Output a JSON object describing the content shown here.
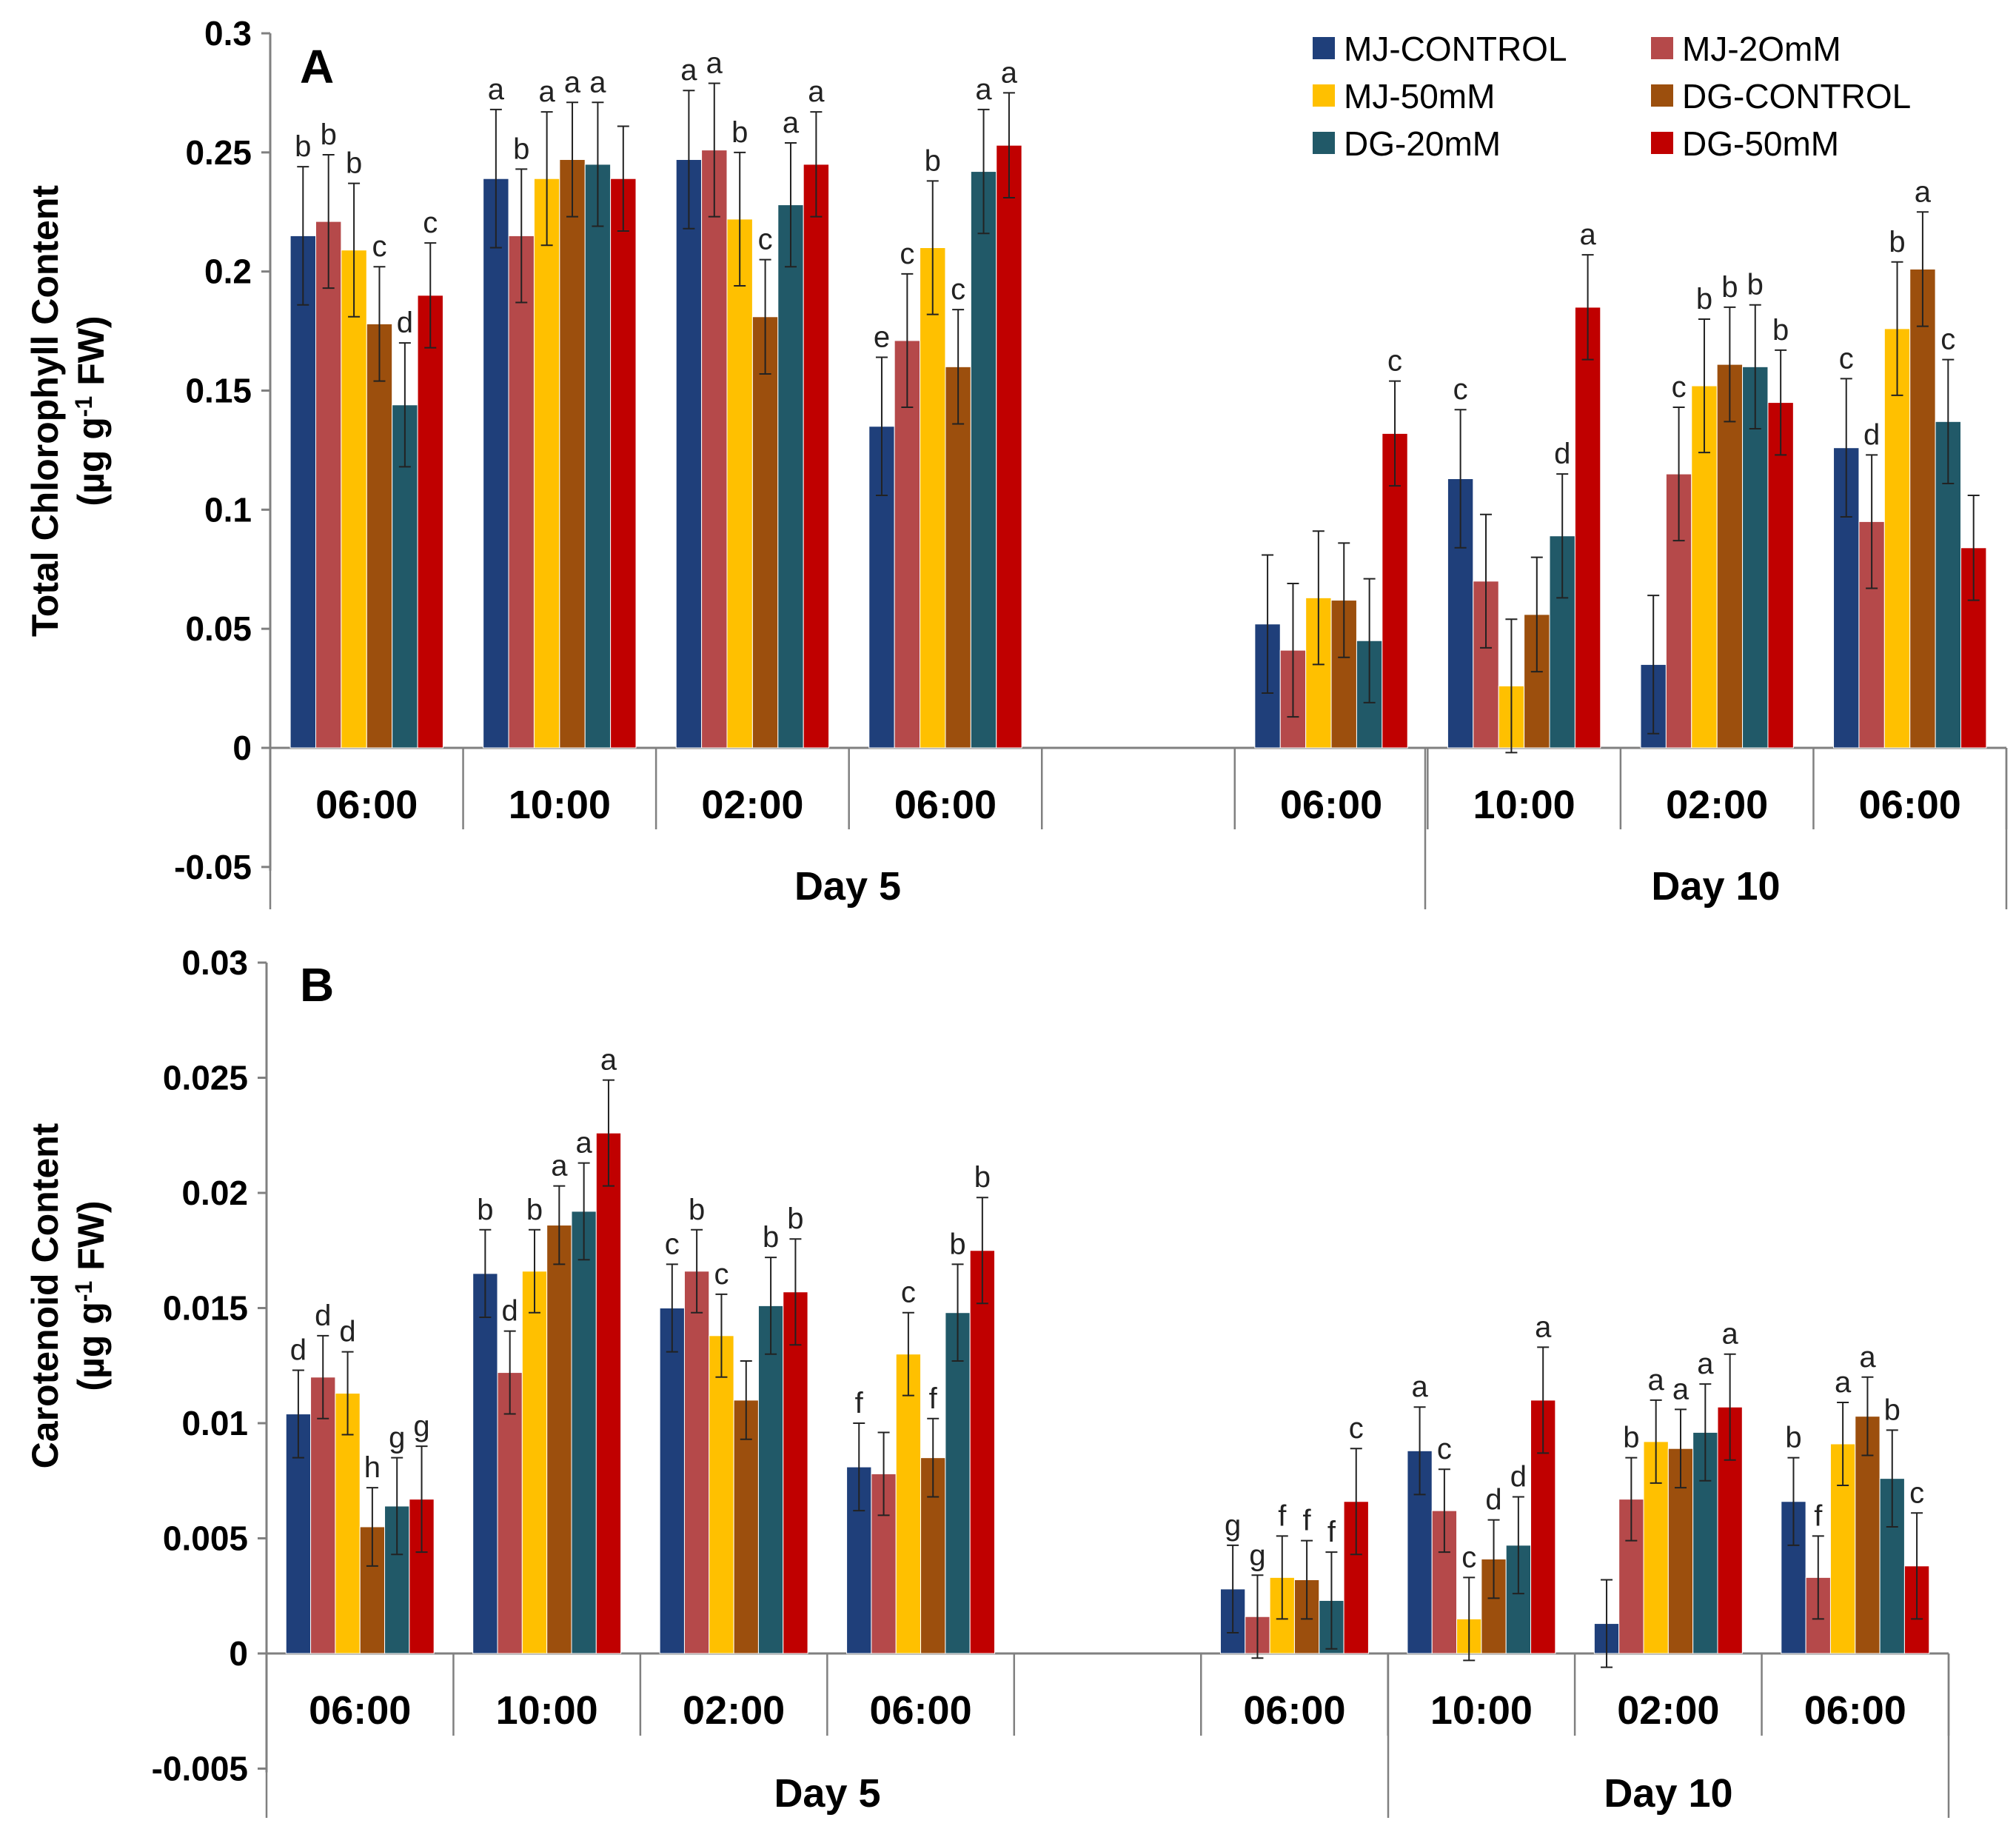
{
  "legend": [
    {
      "name": "MJ-CONTROL",
      "color": "#1f3f7a"
    },
    {
      "name": "MJ-2OmM",
      "color": "#b5494a"
    },
    {
      "name": "MJ-50mM",
      "color": "#ffc000"
    },
    {
      "name": "DG-CONTROL",
      "color": "#9c4f0d"
    },
    {
      "name": "DG-20mM",
      "color": "#215968"
    },
    {
      "name": "DG-50mM",
      "color": "#c00000"
    }
  ],
  "chart_data": [
    {
      "type": "bar",
      "panel": "A",
      "ylabel_line1": "Total Chlorophyll Content",
      "ylabel_line2": "(µg g",
      "ylabel_sup": "-1",
      "ylabel_line2_end": " FW)",
      "ylim": [
        -0.05,
        0.3
      ],
      "yticks": [
        "-0.05",
        "0",
        "0.05",
        "0.1",
        "0.15",
        "0.2",
        "0.25",
        "0.3"
      ],
      "ytick_values": [
        -0.05,
        0,
        0.05,
        0.1,
        0.15,
        0.2,
        0.25,
        0.3
      ],
      "categories": [
        "06:00",
        "10:00",
        "02:00",
        "06:00",
        "",
        "06:00",
        "10:00",
        "02:00",
        "06:00"
      ],
      "groups": [
        {
          "label": "Day 5"
        },
        {
          "label": "Day 10"
        }
      ],
      "series": [
        {
          "name": "MJ-CONTROL",
          "values": [
            0.215,
            0.239,
            0.247,
            0.135,
            null,
            0.052,
            0.113,
            0.035,
            0.126
          ],
          "errors": [
            0.029,
            0.029,
            0.029,
            0.029,
            null,
            0.029,
            0.029,
            0.029,
            0.029
          ],
          "labels": [
            "b",
            "a",
            "a",
            "e",
            "",
            "",
            "c",
            "",
            "c"
          ]
        },
        {
          "name": "MJ-2OmM",
          "values": [
            0.221,
            0.215,
            0.251,
            0.171,
            null,
            0.041,
            0.07,
            0.115,
            0.095
          ],
          "errors": [
            0.028,
            0.028,
            0.028,
            0.028,
            null,
            0.028,
            0.028,
            0.028,
            0.028
          ],
          "labels": [
            "b",
            "b",
            "a",
            "c",
            "",
            "",
            "",
            "c",
            "d"
          ]
        },
        {
          "name": "MJ-50mM",
          "values": [
            0.209,
            0.239,
            0.222,
            0.21,
            null,
            0.063,
            0.026,
            0.152,
            0.176
          ],
          "errors": [
            0.028,
            0.028,
            0.028,
            0.028,
            null,
            0.028,
            0.028,
            0.028,
            0.028
          ],
          "labels": [
            "b",
            "a",
            "b",
            "b",
            "",
            "",
            "",
            "b",
            "b"
          ]
        },
        {
          "name": "DG-CONTROL",
          "values": [
            0.178,
            0.247,
            0.181,
            0.16,
            null,
            0.062,
            0.056,
            0.161,
            0.201
          ],
          "errors": [
            0.024,
            0.024,
            0.024,
            0.024,
            null,
            0.024,
            0.024,
            0.024,
            0.024
          ],
          "labels": [
            "c",
            "a",
            "c",
            "c",
            "",
            "",
            "",
            "b",
            "a"
          ]
        },
        {
          "name": "DG-20mM",
          "values": [
            0.144,
            0.245,
            0.228,
            0.242,
            null,
            0.045,
            0.089,
            0.16,
            0.137
          ],
          "errors": [
            0.026,
            0.026,
            0.026,
            0.026,
            null,
            0.026,
            0.026,
            0.026,
            0.026
          ],
          "labels": [
            "d",
            "a",
            "a",
            "a",
            "",
            "",
            "d",
            "b",
            "c"
          ]
        },
        {
          "name": "DG-50mM",
          "values": [
            0.19,
            0.239,
            0.245,
            0.253,
            null,
            0.132,
            0.185,
            0.145,
            0.084
          ],
          "errors": [
            0.022,
            0.022,
            0.022,
            0.022,
            null,
            0.022,
            0.022,
            0.022,
            0.022
          ],
          "labels": [
            "c",
            "",
            "a",
            "a",
            "",
            "c",
            "a",
            "b",
            ""
          ]
        }
      ]
    },
    {
      "type": "bar",
      "panel": "B",
      "ylabel_line1": "Carotenoid Content",
      "ylabel_line2": "(µg g",
      "ylabel_sup": "-1",
      "ylabel_line2_end": " FW)",
      "ylim": [
        -0.005,
        0.03
      ],
      "yticks": [
        "-0.005",
        "0",
        "0.005",
        "0.01",
        "0.015",
        "0.02",
        "0.025",
        "0.03"
      ],
      "ytick_values": [
        -0.005,
        0,
        0.005,
        0.01,
        0.015,
        0.02,
        0.025,
        0.03
      ],
      "categories": [
        "06:00",
        "10:00",
        "02:00",
        "06:00",
        "",
        "06:00",
        "10:00",
        "02:00",
        "06:00"
      ],
      "groups": [
        {
          "label": "Day 5"
        },
        {
          "label": "Day 10"
        }
      ],
      "series": [
        {
          "name": "MJ-CONTROL",
          "values": [
            0.0104,
            0.0165,
            0.015,
            0.0081,
            null,
            0.0028,
            0.0088,
            0.0013,
            0.0066
          ],
          "errors": [
            0.0019,
            0.0019,
            0.0019,
            0.0019,
            null,
            0.0019,
            0.0019,
            0.0019,
            0.0019
          ],
          "labels": [
            "d",
            "b",
            "c",
            "f",
            "",
            "g",
            "a",
            "",
            "b"
          ]
        },
        {
          "name": "MJ-2OmM",
          "values": [
            0.012,
            0.0122,
            0.0166,
            0.0078,
            null,
            0.0016,
            0.0062,
            0.0067,
            0.0033
          ],
          "errors": [
            0.0018,
            0.0018,
            0.0018,
            0.0018,
            null,
            0.0018,
            0.0018,
            0.0018,
            0.0018
          ],
          "labels": [
            "d",
            "d",
            "b",
            "",
            "",
            "g",
            "c",
            "b",
            "f"
          ]
        },
        {
          "name": "MJ-50mM",
          "values": [
            0.0113,
            0.0166,
            0.0138,
            0.013,
            null,
            0.0033,
            0.0015,
            0.0092,
            0.0091
          ],
          "errors": [
            0.0018,
            0.0018,
            0.0018,
            0.0018,
            null,
            0.0018,
            0.0018,
            0.0018,
            0.0018
          ],
          "labels": [
            "d",
            "b",
            "c",
            "c",
            "",
            "f",
            "c",
            "a",
            "a"
          ]
        },
        {
          "name": "DG-CONTROL",
          "values": [
            0.0055,
            0.0186,
            0.011,
            0.0085,
            null,
            0.0032,
            0.0041,
            0.0089,
            0.0103
          ],
          "errors": [
            0.0017,
            0.0017,
            0.0017,
            0.0017,
            null,
            0.0017,
            0.0017,
            0.0017,
            0.0017
          ],
          "labels": [
            "h",
            "a",
            "",
            "f",
            "",
            "f",
            "d",
            "a",
            "a"
          ]
        },
        {
          "name": "DG-20mM",
          "values": [
            0.0064,
            0.0192,
            0.0151,
            0.0148,
            null,
            0.0023,
            0.0047,
            0.0096,
            0.0076
          ],
          "errors": [
            0.0021,
            0.0021,
            0.0021,
            0.0021,
            null,
            0.0021,
            0.0021,
            0.0021,
            0.0021
          ],
          "labels": [
            "g",
            "a",
            "b",
            "b",
            "",
            "f",
            "d",
            "a",
            "b"
          ]
        },
        {
          "name": "DG-50mM",
          "values": [
            0.0067,
            0.0226,
            0.0157,
            0.0175,
            null,
            0.0066,
            0.011,
            0.0107,
            0.0038
          ],
          "errors": [
            0.0023,
            0.0023,
            0.0023,
            0.0023,
            null,
            0.0023,
            0.0023,
            0.0023,
            0.0023
          ],
          "labels": [
            "g",
            "a",
            "b",
            "b",
            "",
            "c",
            "a",
            "a",
            "c"
          ]
        }
      ]
    }
  ]
}
